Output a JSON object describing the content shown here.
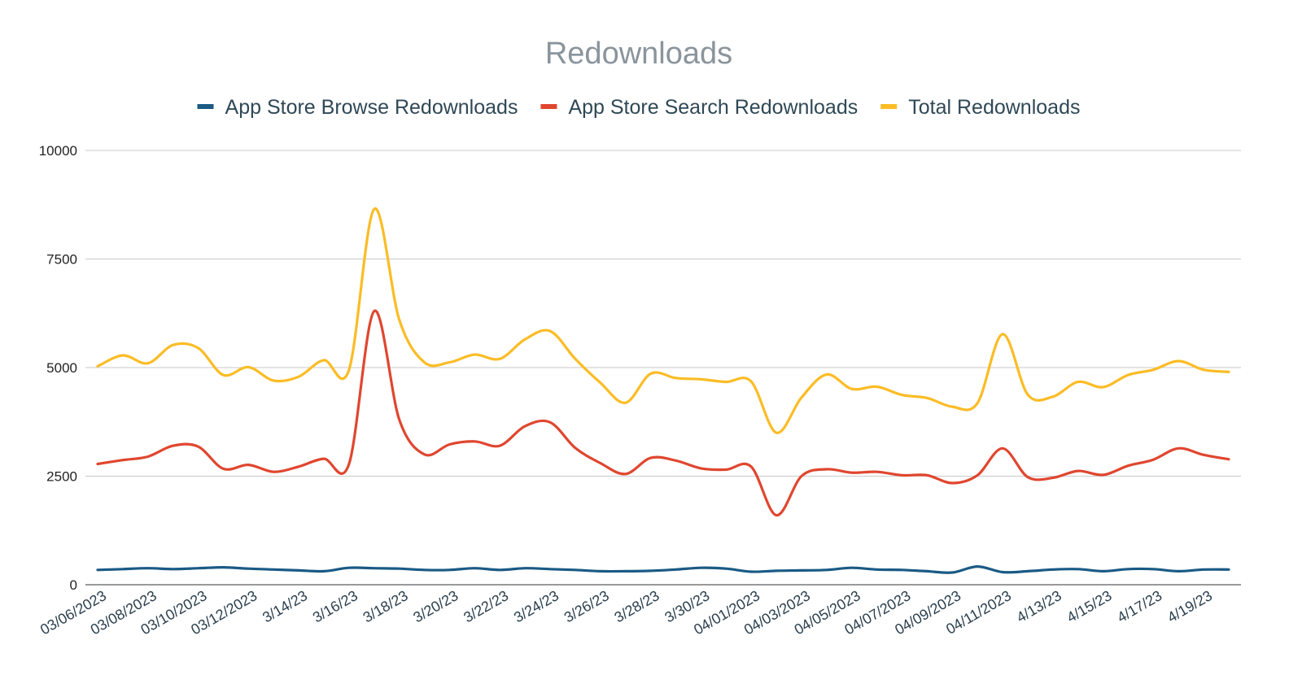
{
  "chart_data": {
    "type": "line",
    "title": "Redownloads",
    "xlabel": "",
    "ylabel": "",
    "ylim": [
      0,
      10000
    ],
    "yticks": [
      0,
      2500,
      5000,
      7500,
      10000
    ],
    "grid": true,
    "legend_position": "top",
    "x_tick_labels": [
      "03/06/2023",
      "03/08/2023",
      "03/10/2023",
      "03/12/2023",
      "3/14/23",
      "3/16/23",
      "3/18/23",
      "3/20/23",
      "3/22/23",
      "3/24/23",
      "3/26/23",
      "3/28/23",
      "3/30/23",
      "04/01/2023",
      "04/03/2023",
      "04/05/2023",
      "04/07/2023",
      "04/09/2023",
      "04/11/2023",
      "4/13/23",
      "4/15/23",
      "4/17/23",
      "4/19/23"
    ],
    "x": [
      "3/6",
      "3/7",
      "3/8",
      "3/9",
      "3/10",
      "3/11",
      "3/12",
      "3/13",
      "3/14",
      "3/15",
      "3/16",
      "3/17",
      "3/18",
      "3/19",
      "3/20",
      "3/21",
      "3/22",
      "3/23",
      "3/24",
      "3/25",
      "3/26",
      "3/27",
      "3/28",
      "3/29",
      "3/30",
      "3/31",
      "4/1",
      "4/2",
      "4/3",
      "4/4",
      "4/5",
      "4/6",
      "4/7",
      "4/8",
      "4/9",
      "4/10",
      "4/11",
      "4/12",
      "4/13",
      "4/14",
      "4/15",
      "4/16",
      "4/17",
      "4/18",
      "4/19",
      "4/20"
    ],
    "series": [
      {
        "name": "App Store Browse Redownloads",
        "color": "#1a5a85",
        "values": [
          340,
          360,
          380,
          360,
          380,
          400,
          370,
          350,
          330,
          310,
          390,
          380,
          370,
          340,
          340,
          380,
          340,
          380,
          360,
          340,
          310,
          310,
          320,
          350,
          390,
          370,
          300,
          320,
          330,
          340,
          390,
          350,
          340,
          310,
          280,
          420,
          290,
          310,
          350,
          360,
          310,
          360,
          360,
          310,
          350,
          350
        ]
      },
      {
        "name": "App Store Search Redownloads",
        "color": "#e0462f",
        "values": [
          2780,
          2870,
          2950,
          3200,
          3180,
          2670,
          2760,
          2600,
          2720,
          2900,
          2780,
          6300,
          3800,
          3000,
          3230,
          3300,
          3200,
          3650,
          3740,
          3150,
          2800,
          2550,
          2920,
          2860,
          2680,
          2650,
          2720,
          1600,
          2500,
          2660,
          2580,
          2600,
          2520,
          2520,
          2340,
          2520,
          3140,
          2480,
          2460,
          2620,
          2530,
          2740,
          2880,
          3140,
          2990,
          2890
        ]
      },
      {
        "name": "Total Redownloads",
        "color": "#fbbc25",
        "values": [
          5030,
          5280,
          5100,
          5520,
          5450,
          4830,
          5010,
          4700,
          4790,
          5170,
          4950,
          8650,
          6100,
          5120,
          5120,
          5300,
          5200,
          5650,
          5840,
          5200,
          4650,
          4190,
          4860,
          4760,
          4730,
          4670,
          4680,
          3500,
          4310,
          4840,
          4510,
          4560,
          4370,
          4300,
          4100,
          4180,
          5770,
          4380,
          4330,
          4670,
          4550,
          4830,
          4950,
          5150,
          4950,
          4900
        ]
      }
    ]
  }
}
